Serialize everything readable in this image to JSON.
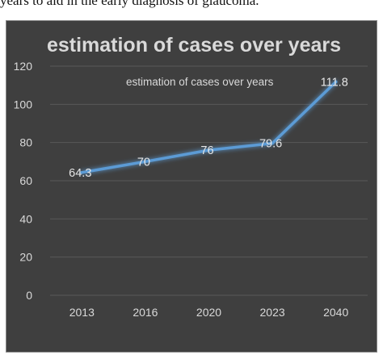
{
  "caption": "years to aid in the early diagnosis of glaucoma.",
  "colors": {
    "background": "#3f3f3f",
    "line": "#5b9bd5",
    "text": "#d9d9d9",
    "grid": "#595959"
  },
  "chart_data": {
    "type": "line",
    "title": "estimation of cases over years",
    "xlabel": "",
    "ylabel": "",
    "categories": [
      "2013",
      "2016",
      "2020",
      "2023",
      "2040"
    ],
    "series": [
      {
        "name": "estimation of cases over years",
        "values": [
          64.3,
          70,
          76,
          79.6,
          111.8
        ],
        "labels": [
          "64.3",
          "70",
          "76",
          "79.6",
          "111.8"
        ]
      }
    ],
    "ylim": [
      0,
      120
    ],
    "yticks": [
      "0",
      "20",
      "40",
      "60",
      "80",
      "100",
      "120"
    ],
    "grid": true,
    "legend_position": "top-right",
    "data_labels": true
  }
}
